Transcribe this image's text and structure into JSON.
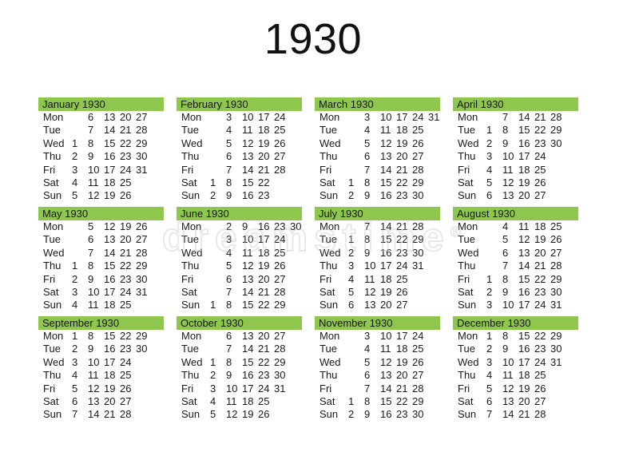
{
  "title": "1930",
  "watermark": {
    "text": "dreamstime",
    "symbol": "®"
  },
  "colors": {
    "header_green": "#8fc74e",
    "text": "#1a1a1a",
    "background": "#ffffff",
    "watermark_gray": "#bebebe"
  },
  "days": [
    "Mon",
    "Tue",
    "Wed",
    "Thu",
    "Fri",
    "Sat",
    "Sun"
  ],
  "months": [
    {
      "name": "January 1930",
      "grid": [
        [
          "",
          "6",
          "13",
          "20",
          "27",
          ""
        ],
        [
          "",
          "7",
          "14",
          "21",
          "28",
          ""
        ],
        [
          "1",
          "8",
          "15",
          "22",
          "29",
          ""
        ],
        [
          "2",
          "9",
          "16",
          "23",
          "30",
          ""
        ],
        [
          "3",
          "10",
          "17",
          "24",
          "31",
          ""
        ],
        [
          "4",
          "11",
          "18",
          "25",
          "",
          ""
        ],
        [
          "5",
          "12",
          "19",
          "26",
          "",
          ""
        ]
      ]
    },
    {
      "name": "February 1930",
      "grid": [
        [
          "",
          "3",
          "10",
          "17",
          "24",
          ""
        ],
        [
          "",
          "4",
          "11",
          "18",
          "25",
          ""
        ],
        [
          "",
          "5",
          "12",
          "19",
          "26",
          ""
        ],
        [
          "",
          "6",
          "13",
          "20",
          "27",
          ""
        ],
        [
          "",
          "7",
          "14",
          "21",
          "28",
          ""
        ],
        [
          "1",
          "8",
          "15",
          "22",
          "",
          ""
        ],
        [
          "2",
          "9",
          "16",
          "23",
          "",
          ""
        ]
      ]
    },
    {
      "name": "March 1930",
      "grid": [
        [
          "",
          "3",
          "10",
          "17",
          "24",
          "31"
        ],
        [
          "",
          "4",
          "11",
          "18",
          "25",
          ""
        ],
        [
          "",
          "5",
          "12",
          "19",
          "26",
          ""
        ],
        [
          "",
          "6",
          "13",
          "20",
          "27",
          ""
        ],
        [
          "",
          "7",
          "14",
          "21",
          "28",
          ""
        ],
        [
          "1",
          "8",
          "15",
          "22",
          "29",
          ""
        ],
        [
          "2",
          "9",
          "16",
          "23",
          "30",
          ""
        ]
      ]
    },
    {
      "name": "April 1930",
      "grid": [
        [
          "",
          "7",
          "14",
          "21",
          "28",
          ""
        ],
        [
          "1",
          "8",
          "15",
          "22",
          "29",
          ""
        ],
        [
          "2",
          "9",
          "16",
          "23",
          "30",
          ""
        ],
        [
          "3",
          "10",
          "17",
          "24",
          "",
          ""
        ],
        [
          "4",
          "11",
          "18",
          "25",
          "",
          ""
        ],
        [
          "5",
          "12",
          "19",
          "26",
          "",
          ""
        ],
        [
          "6",
          "13",
          "20",
          "27",
          "",
          ""
        ]
      ]
    },
    {
      "name": "May 1930",
      "grid": [
        [
          "",
          "5",
          "12",
          "19",
          "26",
          ""
        ],
        [
          "",
          "6",
          "13",
          "20",
          "27",
          ""
        ],
        [
          "",
          "7",
          "14",
          "21",
          "28",
          ""
        ],
        [
          "1",
          "8",
          "15",
          "22",
          "29",
          ""
        ],
        [
          "2",
          "9",
          "16",
          "23",
          "30",
          ""
        ],
        [
          "3",
          "10",
          "17",
          "24",
          "31",
          ""
        ],
        [
          "4",
          "11",
          "18",
          "25",
          "",
          ""
        ]
      ]
    },
    {
      "name": "June 1930",
      "grid": [
        [
          "",
          "2",
          "9",
          "16",
          "23",
          "30"
        ],
        [
          "",
          "3",
          "10",
          "17",
          "24",
          ""
        ],
        [
          "",
          "4",
          "11",
          "18",
          "25",
          ""
        ],
        [
          "",
          "5",
          "12",
          "19",
          "26",
          ""
        ],
        [
          "",
          "6",
          "13",
          "20",
          "27",
          ""
        ],
        [
          "",
          "7",
          "14",
          "21",
          "28",
          ""
        ],
        [
          "1",
          "8",
          "15",
          "22",
          "29",
          ""
        ]
      ]
    },
    {
      "name": "July 1930",
      "grid": [
        [
          "",
          "7",
          "14",
          "21",
          "28",
          ""
        ],
        [
          "1",
          "8",
          "15",
          "22",
          "29",
          ""
        ],
        [
          "2",
          "9",
          "16",
          "23",
          "30",
          ""
        ],
        [
          "3",
          "10",
          "17",
          "24",
          "31",
          ""
        ],
        [
          "4",
          "11",
          "18",
          "25",
          "",
          ""
        ],
        [
          "5",
          "12",
          "19",
          "26",
          "",
          ""
        ],
        [
          "6",
          "13",
          "20",
          "27",
          "",
          ""
        ]
      ]
    },
    {
      "name": "August 1930",
      "grid": [
        [
          "",
          "4",
          "11",
          "18",
          "25",
          ""
        ],
        [
          "",
          "5",
          "12",
          "19",
          "26",
          ""
        ],
        [
          "",
          "6",
          "13",
          "20",
          "27",
          ""
        ],
        [
          "",
          "7",
          "14",
          "21",
          "28",
          ""
        ],
        [
          "1",
          "8",
          "15",
          "22",
          "29",
          ""
        ],
        [
          "2",
          "9",
          "16",
          "23",
          "30",
          ""
        ],
        [
          "3",
          "10",
          "17",
          "24",
          "31",
          ""
        ]
      ]
    },
    {
      "name": "September 1930",
      "grid": [
        [
          "1",
          "8",
          "15",
          "22",
          "29",
          ""
        ],
        [
          "2",
          "9",
          "16",
          "23",
          "30",
          ""
        ],
        [
          "3",
          "10",
          "17",
          "24",
          "",
          ""
        ],
        [
          "4",
          "11",
          "18",
          "25",
          "",
          ""
        ],
        [
          "5",
          "12",
          "19",
          "26",
          "",
          ""
        ],
        [
          "6",
          "13",
          "20",
          "27",
          "",
          ""
        ],
        [
          "7",
          "14",
          "21",
          "28",
          "",
          ""
        ]
      ]
    },
    {
      "name": "October 1930",
      "grid": [
        [
          "",
          "6",
          "13",
          "20",
          "27",
          ""
        ],
        [
          "",
          "7",
          "14",
          "21",
          "28",
          ""
        ],
        [
          "1",
          "8",
          "15",
          "22",
          "29",
          ""
        ],
        [
          "2",
          "9",
          "16",
          "23",
          "30",
          ""
        ],
        [
          "3",
          "10",
          "17",
          "24",
          "31",
          ""
        ],
        [
          "4",
          "11",
          "18",
          "25",
          "",
          ""
        ],
        [
          "5",
          "12",
          "19",
          "26",
          "",
          ""
        ]
      ]
    },
    {
      "name": "November 1930",
      "grid": [
        [
          "",
          "3",
          "10",
          "17",
          "24",
          ""
        ],
        [
          "",
          "4",
          "11",
          "18",
          "25",
          ""
        ],
        [
          "",
          "5",
          "12",
          "19",
          "26",
          ""
        ],
        [
          "",
          "6",
          "13",
          "20",
          "27",
          ""
        ],
        [
          "",
          "7",
          "14",
          "21",
          "28",
          ""
        ],
        [
          "1",
          "8",
          "15",
          "22",
          "29",
          ""
        ],
        [
          "2",
          "9",
          "16",
          "23",
          "30",
          ""
        ]
      ]
    },
    {
      "name": "December 1930",
      "grid": [
        [
          "1",
          "8",
          "15",
          "22",
          "29",
          ""
        ],
        [
          "2",
          "9",
          "16",
          "23",
          "30",
          ""
        ],
        [
          "3",
          "10",
          "17",
          "24",
          "31",
          ""
        ],
        [
          "4",
          "11",
          "18",
          "25",
          "",
          ""
        ],
        [
          "5",
          "12",
          "19",
          "26",
          "",
          ""
        ],
        [
          "6",
          "13",
          "20",
          "27",
          "",
          ""
        ],
        [
          "7",
          "14",
          "21",
          "28",
          "",
          ""
        ]
      ]
    }
  ]
}
